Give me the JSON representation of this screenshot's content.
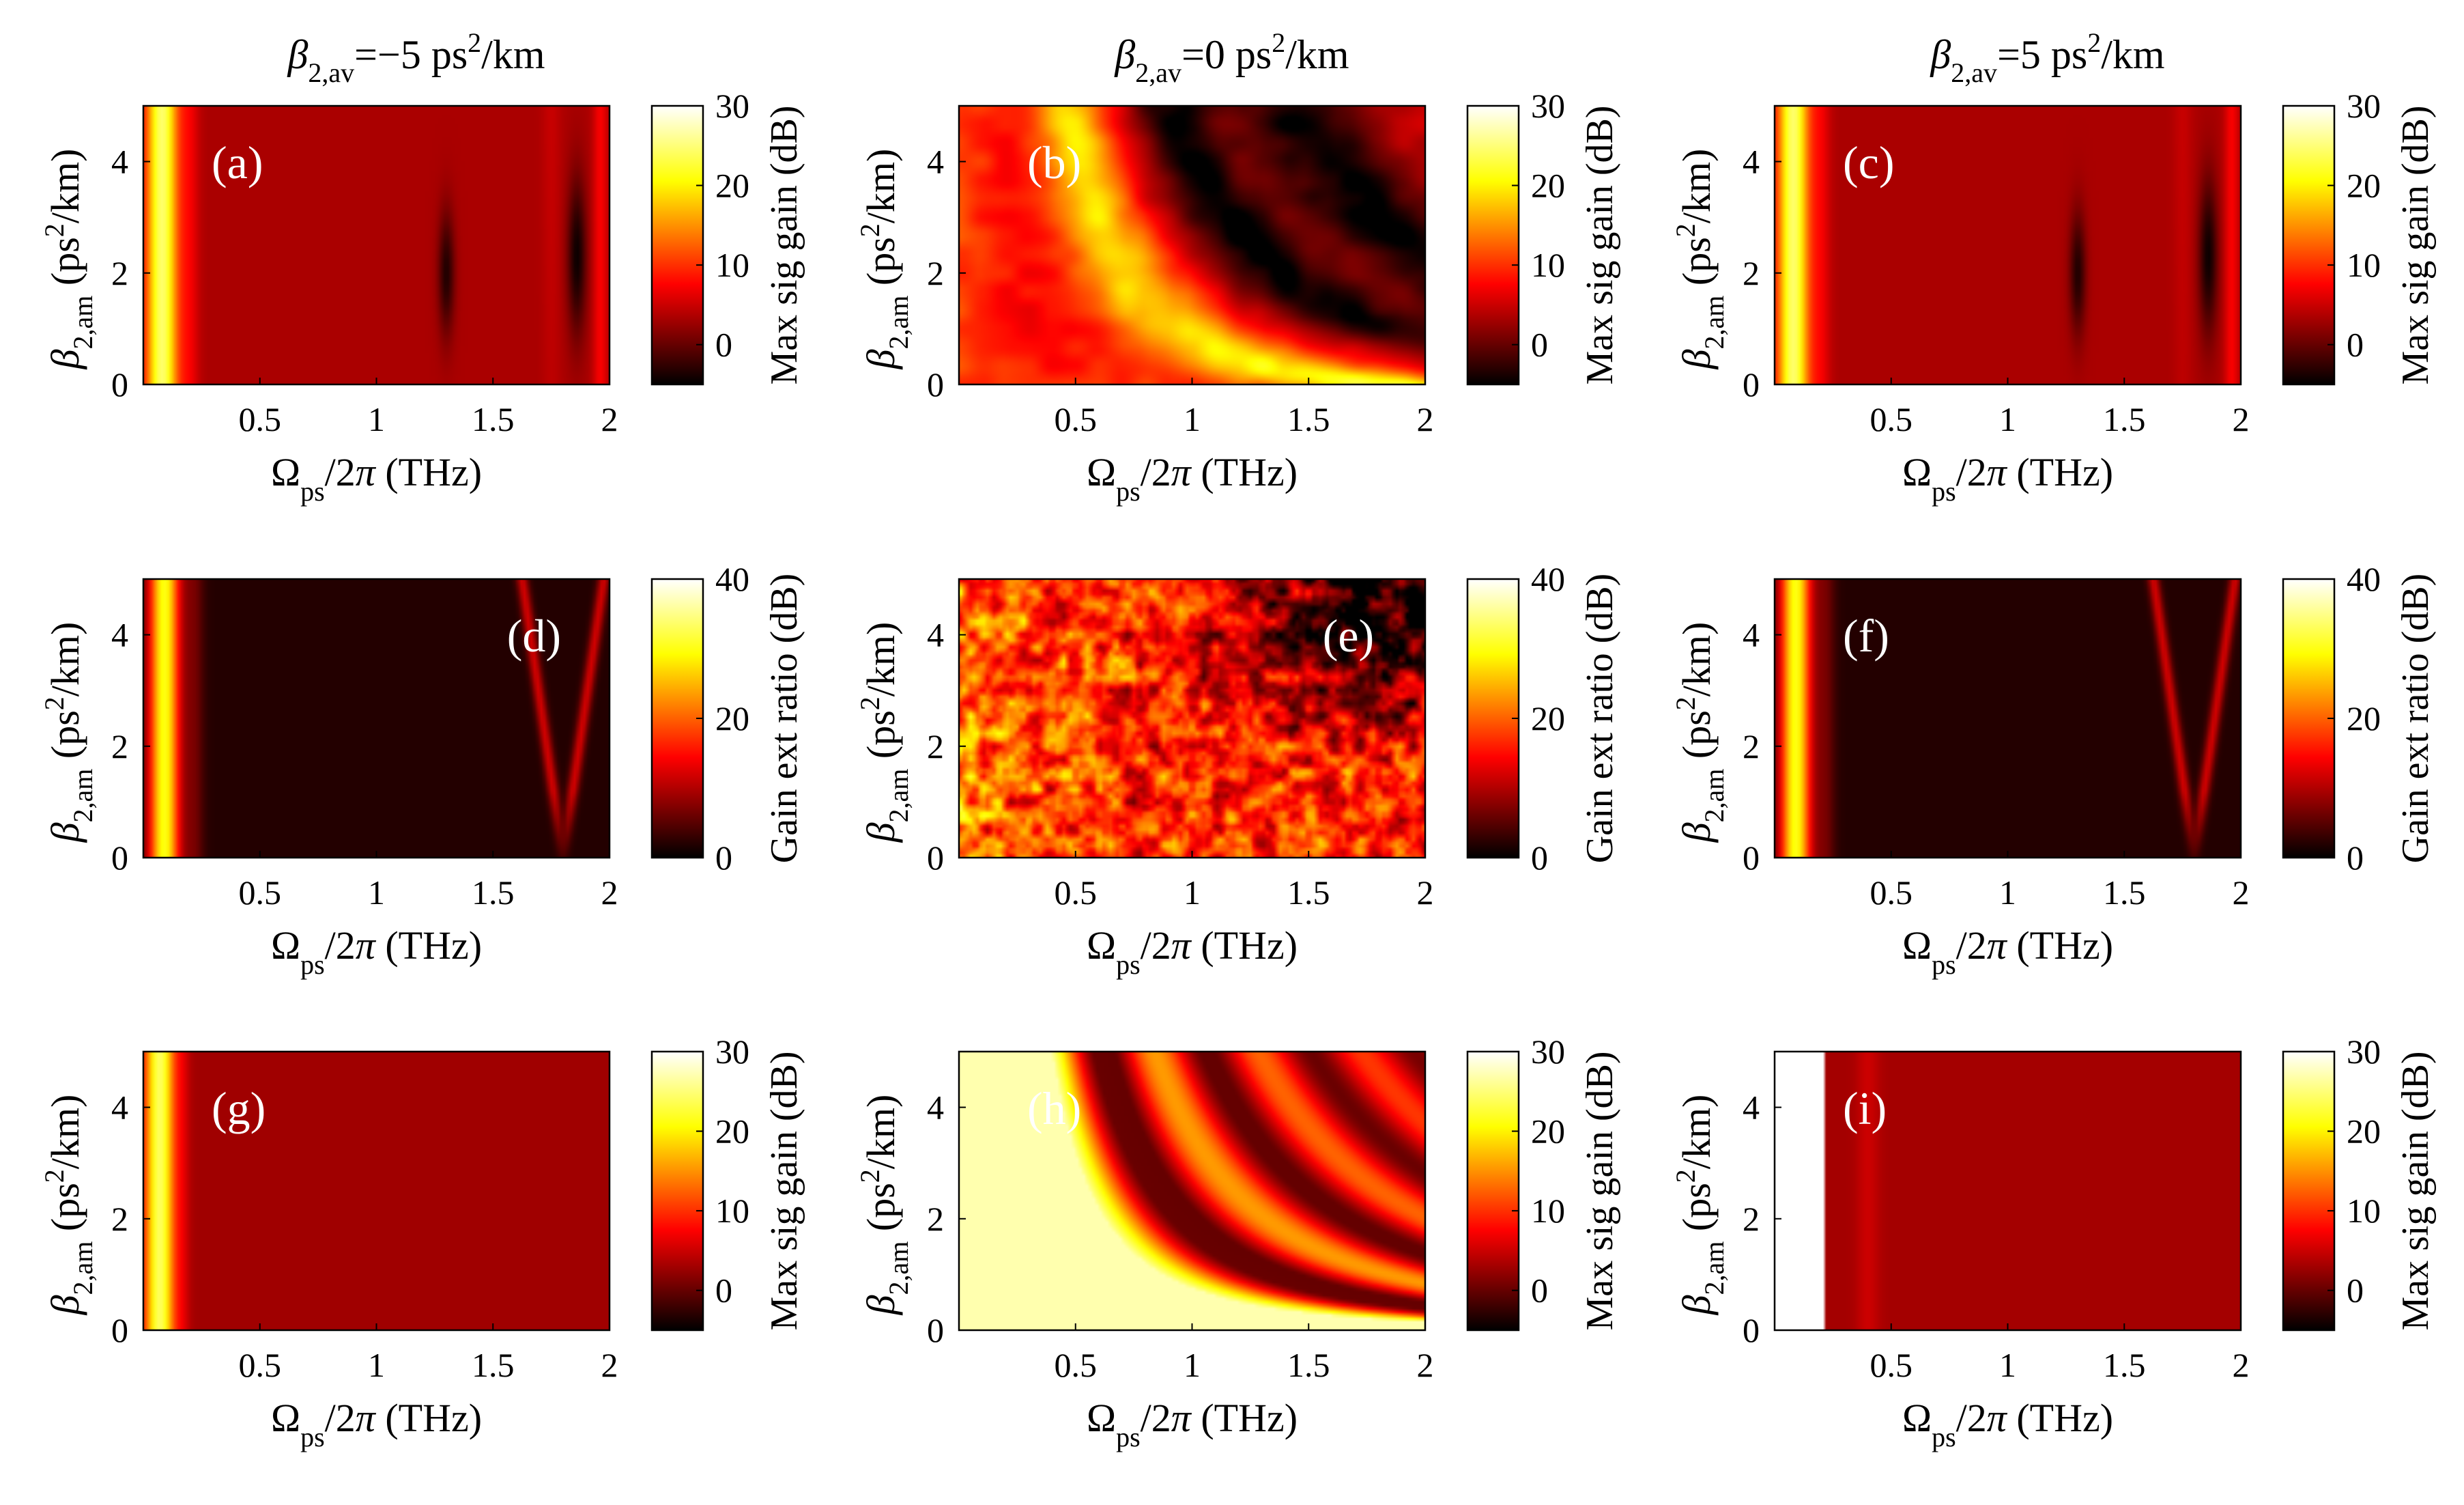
{
  "chart_data": [
    {
      "type": "heatmap",
      "panel": "(a)",
      "label": "(a)",
      "title": "β2,av=−5 ps²/km",
      "xlabel": "Ω_ps/2π (THz)",
      "ylabel": "β2,am (ps²/km)",
      "x_range": [
        0.0,
        2.0
      ],
      "y_range": [
        0,
        5
      ],
      "xticks": [
        "0.5",
        "1",
        "1.5",
        "2"
      ],
      "yticks": [
        "0",
        "2",
        "4"
      ],
      "colorbar": {
        "label": "Max sig gain (dB)",
        "range": [
          -5,
          30
        ],
        "ticks": [
          "0",
          "10",
          "20",
          "30"
        ]
      },
      "pattern": "Bright band (~25 dB) for Ω<0.2 THz, ~3-5 dB elsewhere, dark notches near 1.3 and 1.85 THz around β2,am≈1-4"
    },
    {
      "type": "heatmap",
      "panel": "(b)",
      "label": "(b)",
      "title": "β2,av=0 ps²/km",
      "xlabel": "Ω_ps/2π (THz)",
      "ylabel": "β2,am (ps²/km)",
      "x_range": [
        0.0,
        2.0
      ],
      "y_range": [
        0,
        5
      ],
      "xticks": [
        "0.5",
        "1",
        "1.5",
        "2"
      ],
      "yticks": [
        "0",
        "2",
        "4"
      ],
      "colorbar": {
        "label": "Max sig gain (dB)",
        "range": [
          -5,
          30
        ],
        "ticks": [
          "0",
          "10",
          "20",
          "30"
        ]
      },
      "pattern": "Hyperbolic gain bands ~20 dB along Ω·sqrt(β2,am) const, dark regions upper right"
    },
    {
      "type": "heatmap",
      "panel": "(c)",
      "label": "(c)",
      "title": "β2,av=5 ps²/km",
      "xlabel": "Ω_ps/2π (THz)",
      "ylabel": "β2,am (ps²/km)",
      "x_range": [
        0.0,
        2.0
      ],
      "y_range": [
        0,
        5
      ],
      "xticks": [
        "0.5",
        "1",
        "1.5",
        "2"
      ],
      "yticks": [
        "0",
        "2",
        "4"
      ],
      "colorbar": {
        "label": "Max sig gain (dB)",
        "range": [
          -5,
          30
        ],
        "ticks": [
          "0",
          "10",
          "20",
          "30"
        ]
      },
      "pattern": "Same as (a)"
    },
    {
      "type": "heatmap",
      "panel": "(d)",
      "label": "(d)",
      "title": "",
      "xlabel": "Ω_ps/2π (THz)",
      "ylabel": "β2,am (ps²/km)",
      "x_range": [
        0.0,
        2.0
      ],
      "y_range": [
        0,
        5
      ],
      "xticks": [
        "0.5",
        "1",
        "1.5",
        "2"
      ],
      "yticks": [
        "0",
        "2",
        "4"
      ],
      "colorbar": {
        "label": "Gain ext ratio (dB)",
        "range": [
          0,
          40
        ],
        "ticks": [
          "0",
          "20",
          "40"
        ]
      },
      "pattern": "Bright band (~25-30 dB) for Ω<0.2 THz, near 0 elsewhere, V-shaped feature near 1.8 THz"
    },
    {
      "type": "heatmap",
      "panel": "(e)",
      "label": "(e)",
      "title": "",
      "xlabel": "Ω_ps/2π (THz)",
      "ylabel": "β2,am (ps²/km)",
      "x_range": [
        0.0,
        2.0
      ],
      "y_range": [
        0,
        5
      ],
      "xticks": [
        "0.5",
        "1",
        "1.5",
        "2"
      ],
      "yticks": [
        "0",
        "2",
        "4"
      ],
      "colorbar": {
        "label": "Gain ext ratio (dB)",
        "range": [
          0,
          40
        ],
        "ticks": [
          "0",
          "20",
          "40"
        ]
      },
      "pattern": "Noisy 10-30 dB speckle, darker upper right"
    },
    {
      "type": "heatmap",
      "panel": "(f)",
      "label": "(f)",
      "title": "",
      "xlabel": "Ω_ps/2π (THz)",
      "ylabel": "β2,am (ps²/km)",
      "x_range": [
        0.0,
        2.0
      ],
      "y_range": [
        0,
        5
      ],
      "xticks": [
        "0.5",
        "1",
        "1.5",
        "2"
      ],
      "yticks": [
        "0",
        "2",
        "4"
      ],
      "colorbar": {
        "label": "Gain ext ratio (dB)",
        "range": [
          0,
          40
        ],
        "ticks": [
          "0",
          "20",
          "40"
        ]
      },
      "pattern": "Same as (d)"
    },
    {
      "type": "heatmap",
      "panel": "(g)",
      "label": "(g)",
      "title": "",
      "xlabel": "Ω_ps/2π (THz)",
      "ylabel": "β2,am (ps²/km)",
      "x_range": [
        0.0,
        2.0
      ],
      "y_range": [
        0,
        5
      ],
      "xticks": [
        "0.5",
        "1",
        "1.5",
        "2"
      ],
      "yticks": [
        "0",
        "2",
        "4"
      ],
      "colorbar": {
        "label": "Max sig gain (dB)",
        "range": [
          -5,
          30
        ],
        "ticks": [
          "0",
          "10",
          "20",
          "30"
        ]
      },
      "pattern": "Bright band for Ω<0.15 THz, uniform ~3 dB elsewhere"
    },
    {
      "type": "heatmap",
      "panel": "(h)",
      "label": "(h)",
      "title": "",
      "xlabel": "Ω_ps/2π (THz)",
      "ylabel": "β2,am (ps²/km)",
      "x_range": [
        0.0,
        2.0
      ],
      "y_range": [
        0,
        5
      ],
      "xticks": [
        "0.5",
        "1",
        "1.5",
        "2"
      ],
      "yticks": [
        "0",
        "2",
        "4"
      ],
      "colorbar": {
        "label": "Max sig gain (dB)",
        "range": [
          -5,
          30
        ],
        "ticks": [
          "0",
          "10",
          "20",
          "30"
        ]
      },
      "pattern": "High gain (~27 dB) below hyperbola Ω·sqrt(β2,am)≈const, oscillating bands above"
    },
    {
      "type": "heatmap",
      "panel": "(i)",
      "label": "(i)",
      "title": "",
      "xlabel": "Ω_ps/2π (THz)",
      "ylabel": "β2,am (ps²/km)",
      "x_range": [
        0.0,
        2.0
      ],
      "y_range": [
        0,
        5
      ],
      "xticks": [
        "0.5",
        "1",
        "1.5",
        "2"
      ],
      "yticks": [
        "0",
        "2",
        "4"
      ],
      "colorbar": {
        "label": "Max sig gain (dB)",
        "range": [
          -5,
          30
        ],
        "ticks": [
          "0",
          "10",
          "20",
          "30"
        ]
      },
      "pattern": "Very bright band (~30 dB) for Ω<0.22 THz, uniform ~3 dB elsewhere"
    }
  ],
  "colormap": "hot",
  "colors": {
    "black": "#000000",
    "dark_red": "#7a0000",
    "red": "#ff0000",
    "orange": "#ff8a00",
    "yellow": "#ffff00",
    "white": "#ffffff"
  }
}
